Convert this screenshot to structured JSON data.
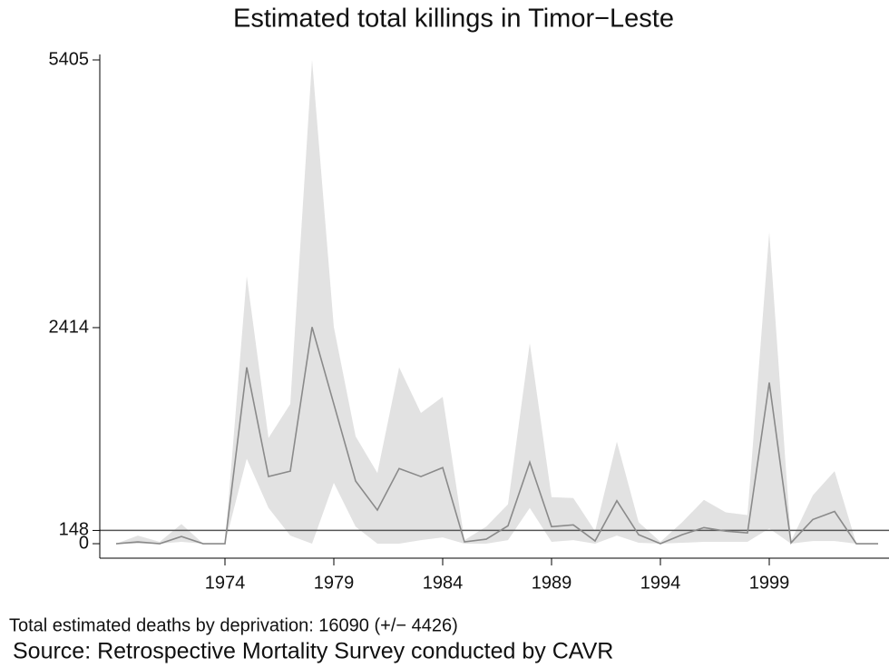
{
  "chart_data": {
    "type": "line",
    "title": "Estimated total killings in Timor−Leste",
    "notes": [
      "Total estimated deaths by deprivation: 16090 (+/− 4426)",
      "Source: Retrospective Mortality Survey conducted by CAVR"
    ],
    "x": [
      1969,
      1970,
      1971,
      1972,
      1973,
      1974,
      1975,
      1976,
      1977,
      1978,
      1979,
      1980,
      1981,
      1982,
      1983,
      1984,
      1985,
      1986,
      1987,
      1988,
      1989,
      1990,
      1991,
      1992,
      1993,
      1994,
      1995,
      1996,
      1997,
      1998,
      1999,
      2000,
      2001,
      2002,
      2003,
      2004
    ],
    "series": [
      {
        "color": "#8a8a8a",
        "values": [
          0,
          20,
          0,
          80,
          0,
          0,
          1970,
          750,
          810,
          2420,
          1560,
          700,
          375,
          840,
          750,
          850,
          20,
          50,
          200,
          910,
          190,
          210,
          30,
          480,
          100,
          0,
          100,
          180,
          140,
          120,
          1800,
          10,
          270,
          360,
          0,
          0
        ]
      }
    ],
    "band": {
      "color": "#e2e2e2",
      "upper": [
        0,
        90,
        20,
        220,
        0,
        0,
        2990,
        1180,
        1560,
        5405,
        2420,
        1200,
        790,
        1970,
        1460,
        1640,
        40,
        190,
        440,
        2240,
        520,
        510,
        140,
        1140,
        240,
        20,
        240,
        490,
        350,
        320,
        3480,
        30,
        540,
        810,
        0,
        0
      ],
      "lower": [
        0,
        0,
        0,
        20,
        0,
        0,
        950,
        400,
        90,
        0,
        680,
        190,
        0,
        0,
        40,
        70,
        0,
        0,
        40,
        400,
        20,
        40,
        0,
        90,
        10,
        0,
        10,
        20,
        20,
        20,
        170,
        0,
        30,
        30,
        0,
        0
      ]
    },
    "reference_line": {
      "value": 148,
      "color": "#555555"
    },
    "xlim": [
      1968.25,
      2004.5
    ],
    "xticks": [
      1974,
      1979,
      1984,
      1989,
      1994,
      1999
    ],
    "ylim": [
      -162,
      5466
    ],
    "yticks": [
      0,
      148,
      2414,
      5405
    ]
  }
}
